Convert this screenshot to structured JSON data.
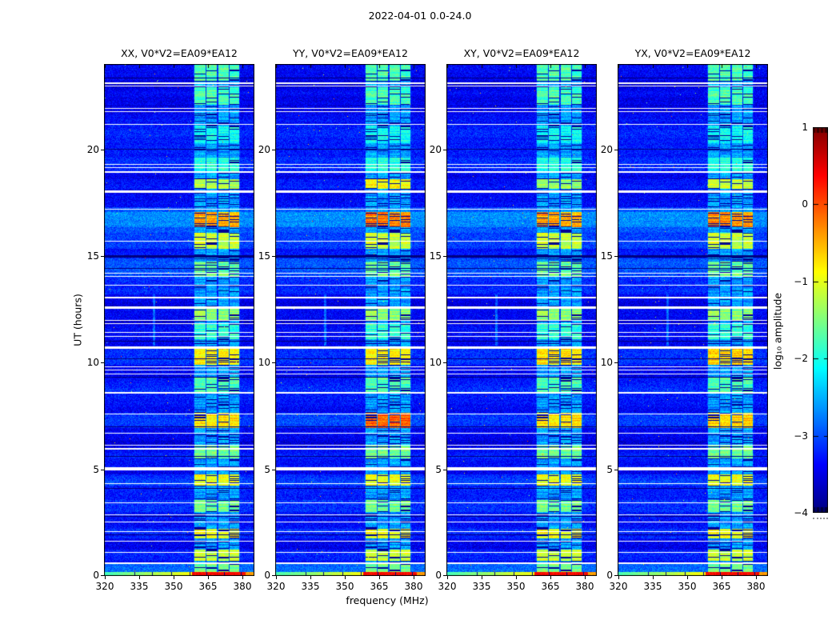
{
  "figure": {
    "title": "2022-04-01 0.0-24.0",
    "background": "#ffffff"
  },
  "axes": {
    "xlabel": "frequency (MHz)",
    "ylabel": "UT (hours)",
    "xticks": [
      320,
      335,
      350,
      365,
      380
    ],
    "yticks": [
      0,
      5,
      10,
      15,
      20
    ],
    "xlim": [
      319.65,
      385.35
    ],
    "ylim": [
      0,
      24
    ]
  },
  "panels": [
    {
      "id": "xx",
      "title": "XX, V0*V2=EA09*EA12"
    },
    {
      "id": "yy",
      "title": "YY, V0*V2=EA09*EA12"
    },
    {
      "id": "xy",
      "title": "XY, V0*V2=EA09*EA12"
    },
    {
      "id": "yx",
      "title": "YX, V0*V2=EA09*EA12"
    }
  ],
  "colorbar": {
    "label": "log₁₀ amplitude",
    "tick_labels": [
      "1",
      "0",
      "−1",
      "−2",
      "−3",
      "−4"
    ],
    "tick_values": [
      1,
      0,
      -1,
      -2,
      -3,
      -4
    ],
    "vmin": -4,
    "vmax": 1,
    "colormap": "jet"
  },
  "chart_data": {
    "type": "heatmap",
    "title": "2022-04-01 0.0-24.0",
    "xlabel": "frequency (MHz)",
    "ylabel": "UT (hours)",
    "xlim": [
      319.65,
      385.35
    ],
    "ylim": [
      0,
      24
    ],
    "value_scale": "log10 amplitude",
    "value_range": [
      -4,
      1
    ],
    "panels": [
      "XX, V0*V2=EA09*EA12",
      "YY, V0*V2=EA09*EA12",
      "XY, V0*V2=EA09*EA12",
      "YX, V0*V2=EA09*EA12"
    ],
    "background_level": -3.45,
    "band_quiet_level": -2.6,
    "rfi_subbands_mhz": [
      [
        359.2,
        363.6
      ],
      [
        364.4,
        368.6
      ],
      [
        369.6,
        373.8
      ],
      [
        374.6,
        378.4
      ]
    ],
    "bg_bright_regions": [
      {
        "ut": [
          13.2,
          14.9
        ],
        "add": 0.25
      },
      {
        "ut": [
          16.1,
          17.3
        ],
        "add": 0.3
      },
      {
        "ut": [
          21.3,
          22.0
        ],
        "add": 0.15
      },
      {
        "ut": [
          0.0,
          0.65
        ],
        "add": 0.35
      }
    ],
    "events": [
      {
        "ut": [
          23.2,
          24.0
        ],
        "boost": 0.85,
        "scale": [
          1,
          1,
          1,
          1
        ]
      },
      {
        "ut": [
          22.1,
          22.9
        ],
        "boost": 0.8,
        "scale": [
          1,
          1,
          1,
          1
        ]
      },
      {
        "ut": [
          20.3,
          21.1
        ],
        "boost": 0.5,
        "scale": [
          1,
          1,
          1,
          1
        ]
      },
      {
        "ut": [
          18.9,
          19.6
        ],
        "boost": 0.65,
        "scale": [
          1,
          1,
          1,
          1
        ]
      },
      {
        "ut": [
          18.15,
          18.6
        ],
        "boost": 1.35,
        "scale": [
          1,
          1.3,
          0.9,
          1.1
        ]
      },
      {
        "ut": [
          16.35,
          17.05
        ],
        "boost": 2.15,
        "scale": [
          1,
          1.1,
          1,
          1.05
        ]
      },
      {
        "ut": [
          15.35,
          16.1
        ],
        "boost": 1.45,
        "scale": [
          1,
          1,
          1,
          1
        ]
      },
      {
        "ut": [
          14.05,
          14.75
        ],
        "boost": 1.0,
        "scale": [
          1,
          1,
          1,
          1
        ]
      },
      {
        "ut": [
          12.0,
          12.55
        ],
        "boost": 1.15,
        "scale": [
          1,
          1,
          1,
          1
        ]
      },
      {
        "ut": [
          11.1,
          11.8
        ],
        "boost": 0.7,
        "scale": [
          1,
          1,
          1,
          1
        ]
      },
      {
        "ut": [
          9.9,
          10.65
        ],
        "boost": 1.75,
        "scale": [
          1,
          1,
          1.05,
          1.1
        ]
      },
      {
        "ut": [
          8.6,
          9.3
        ],
        "boost": 0.85,
        "scale": [
          1,
          1,
          1,
          1
        ]
      },
      {
        "ut": [
          6.95,
          7.65
        ],
        "boost": 1.85,
        "scale": [
          1,
          1.35,
          1,
          1.05
        ]
      },
      {
        "ut": [
          5.5,
          6.1
        ],
        "boost": 1.0,
        "scale": [
          1,
          1,
          1,
          1
        ]
      },
      {
        "ut": [
          4.25,
          4.75
        ],
        "boost": 1.65,
        "scale": [
          1,
          1,
          1,
          1
        ]
      },
      {
        "ut": [
          3.0,
          3.55
        ],
        "boost": 1.0,
        "scale": [
          1,
          1,
          1,
          1
        ]
      },
      {
        "ut": [
          1.75,
          2.2
        ],
        "boost": 1.65,
        "scale": [
          1,
          1,
          1,
          1
        ]
      },
      {
        "ut": [
          0.7,
          1.25
        ],
        "boost": 1.45,
        "scale": [
          1,
          1,
          1,
          1
        ]
      },
      {
        "ut": [
          0.2,
          0.6
        ],
        "boost": 1.1,
        "scale": [
          1,
          1,
          1,
          1
        ]
      }
    ],
    "white_gap_rows_ut": [
      {
        "ut": 23.12,
        "h": 2
      },
      {
        "ut": 23.0,
        "h": 1
      },
      {
        "ut": 21.93,
        "h": 1
      },
      {
        "ut": 21.8,
        "h": 1
      },
      {
        "ut": 21.2,
        "h": 1
      },
      {
        "ut": 19.32,
        "h": 1
      },
      {
        "ut": 19.17,
        "h": 1
      },
      {
        "ut": 18.98,
        "h": 2
      },
      {
        "ut": 18.08,
        "h": 3
      },
      {
        "ut": 17.2,
        "h": 1
      },
      {
        "ut": 15.72,
        "h": 1
      },
      {
        "ut": 14.22,
        "h": 1
      },
      {
        "ut": 14.08,
        "h": 1
      },
      {
        "ut": 13.65,
        "h": 1
      },
      {
        "ut": 13.1,
        "h": 2
      },
      {
        "ut": 12.62,
        "h": 3
      },
      {
        "ut": 12.0,
        "h": 1
      },
      {
        "ut": 11.85,
        "h": 1
      },
      {
        "ut": 11.42,
        "h": 1
      },
      {
        "ut": 11.25,
        "h": 1
      },
      {
        "ut": 10.78,
        "h": 3
      },
      {
        "ut": 9.82,
        "h": 1
      },
      {
        "ut": 9.68,
        "h": 1
      },
      {
        "ut": 9.5,
        "h": 1
      },
      {
        "ut": 8.62,
        "h": 2
      },
      {
        "ut": 7.62,
        "h": 1
      },
      {
        "ut": 6.72,
        "h": 1
      },
      {
        "ut": 6.15,
        "h": 1
      },
      {
        "ut": 6.0,
        "h": 2
      },
      {
        "ut": 5.1,
        "h": 4
      },
      {
        "ut": 4.35,
        "h": 1
      },
      {
        "ut": 3.45,
        "h": 1
      },
      {
        "ut": 2.9,
        "h": 1
      },
      {
        "ut": 2.55,
        "h": 1
      },
      {
        "ut": 2.1,
        "h": 1
      },
      {
        "ut": 1.65,
        "h": 1
      },
      {
        "ut": 1.12,
        "h": 1
      },
      {
        "ut": 0.64,
        "h": 2
      }
    ],
    "black_rows_ut": [
      {
        "ut": 23.38,
        "h": 1
      },
      {
        "ut": 20.02,
        "h": 1
      },
      {
        "ut": 15.05,
        "h": 3
      },
      {
        "ut": 14.42,
        "h": 1
      },
      {
        "ut": 11.02,
        "h": 1
      },
      {
        "ut": 10.2,
        "h": 1
      },
      {
        "ut": 9.35,
        "h": 1
      },
      {
        "ut": 7.02,
        "h": 1
      },
      {
        "ut": 5.62,
        "h": 1
      },
      {
        "ut": 4.12,
        "h": 1
      },
      {
        "ut": 2.8,
        "h": 1
      },
      {
        "ut": 1.95,
        "h": 1
      }
    ],
    "bottom_band": {
      "ut": [
        0,
        0.17
      ],
      "left_level_start": -1.8,
      "left_level_end": -0.9,
      "rfi_level": 0.35,
      "right_level": -0.4,
      "divider_freqs_mhz": [
        333,
        340.5,
        349,
        357,
        364.5,
        372,
        379.5
      ]
    },
    "stripe": {
      "freq_mhz": [
        340.8,
        341.6
      ],
      "ut": [
        10.8,
        13.2
      ],
      "boost": 0.55
    }
  }
}
